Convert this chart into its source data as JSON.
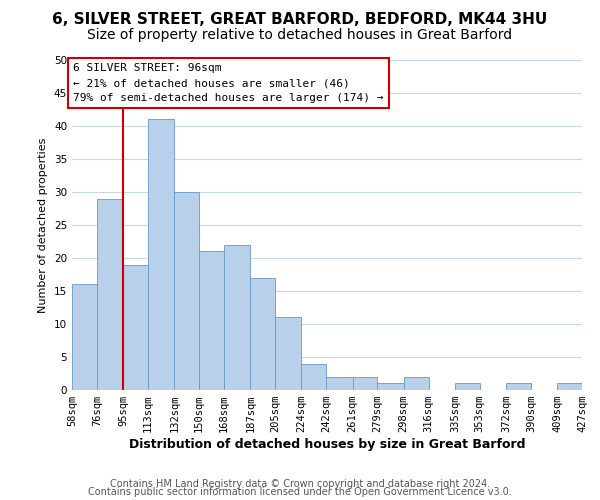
{
  "title": "6, SILVER STREET, GREAT BARFORD, BEDFORD, MK44 3HU",
  "subtitle": "Size of property relative to detached houses in Great Barford",
  "xlabel": "Distribution of detached houses by size in Great Barford",
  "ylabel": "Number of detached properties",
  "bin_edges": [
    58,
    76,
    95,
    113,
    132,
    150,
    168,
    187,
    205,
    224,
    242,
    261,
    279,
    298,
    316,
    335,
    353,
    372,
    390,
    409,
    427
  ],
  "bin_labels": [
    "58sqm",
    "76sqm",
    "95sqm",
    "113sqm",
    "132sqm",
    "150sqm",
    "168sqm",
    "187sqm",
    "205sqm",
    "224sqm",
    "242sqm",
    "261sqm",
    "279sqm",
    "298sqm",
    "316sqm",
    "335sqm",
    "353sqm",
    "372sqm",
    "390sqm",
    "409sqm",
    "427sqm"
  ],
  "counts": [
    16,
    29,
    19,
    41,
    30,
    21,
    22,
    17,
    11,
    4,
    2,
    2,
    1,
    2,
    0,
    1,
    0,
    1,
    0,
    1
  ],
  "bar_color": "#b8d0ea",
  "bar_edge_color": "#6699cc",
  "reference_line_x": 95,
  "reference_line_color": "#cc0000",
  "annotation_line1": "6 SILVER STREET: 96sqm",
  "annotation_line2": "← 21% of detached houses are smaller (46)",
  "annotation_line3": "79% of semi-detached houses are larger (174) →",
  "ylim": [
    0,
    50
  ],
  "yticks": [
    0,
    5,
    10,
    15,
    20,
    25,
    30,
    35,
    40,
    45,
    50
  ],
  "footer_line1": "Contains HM Land Registry data © Crown copyright and database right 2024.",
  "footer_line2": "Contains public sector information licensed under the Open Government Licence v3.0.",
  "background_color": "#ffffff",
  "grid_color": "#c8d8ec",
  "title_fontsize": 11,
  "subtitle_fontsize": 10,
  "xlabel_fontsize": 9,
  "ylabel_fontsize": 8,
  "tick_fontsize": 7.5,
  "annotation_fontsize": 8,
  "footer_fontsize": 7
}
